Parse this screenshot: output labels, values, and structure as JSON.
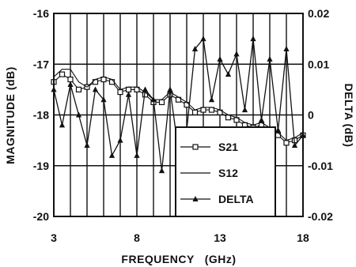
{
  "chart_data": {
    "type": "line",
    "xlabel": "FREQUENCY   (GHz)",
    "ylabel_left": "MAGNITUDE (dB)",
    "ylabel_right": "DELTA (dB)",
    "xlim": [
      3,
      18
    ],
    "ylim_left": [
      -20,
      -16
    ],
    "ylim_right": [
      -0.02,
      0.02
    ],
    "x_ticks": [
      "3",
      "8",
      "13",
      "18"
    ],
    "y_ticks_left": [
      "-16",
      "-17",
      "-18",
      "-19",
      "-20"
    ],
    "y_ticks_right": [
      "0.02",
      "0.01",
      "0",
      "-0.01",
      "-0.02"
    ],
    "grid": true,
    "legend_position": "lower-right",
    "series": [
      {
        "name": "S21",
        "axis": "left",
        "marker": "square",
        "x": [
          3.0,
          3.5,
          4.0,
          4.5,
          5.0,
          5.5,
          6.0,
          6.5,
          7.0,
          7.5,
          8.0,
          8.5,
          9.0,
          9.5,
          10.0,
          10.5,
          11.0,
          11.5,
          12.0,
          12.5,
          13.0,
          13.5,
          14.0,
          14.5,
          15.0,
          15.5,
          16.0,
          16.5,
          17.0,
          17.5,
          18.0
        ],
        "values": [
          -17.35,
          -17.2,
          -17.3,
          -17.5,
          -17.45,
          -17.35,
          -17.3,
          -17.35,
          -17.55,
          -17.5,
          -17.5,
          -17.6,
          -17.75,
          -17.75,
          -17.6,
          -17.7,
          -17.8,
          -17.95,
          -17.9,
          -17.9,
          -17.95,
          -18.05,
          -18.1,
          -18.2,
          -18.25,
          -18.2,
          -18.3,
          -18.4,
          -18.55,
          -18.5,
          -18.4
        ]
      },
      {
        "name": "S12",
        "axis": "left",
        "marker": "none",
        "x": [
          3.0,
          3.5,
          4.0,
          4.5,
          5.0,
          5.5,
          6.0,
          6.5,
          7.0,
          7.5,
          8.0,
          8.5,
          9.0,
          9.5,
          10.0,
          10.5,
          11.0,
          11.5,
          12.0,
          12.5,
          13.0,
          13.5,
          14.0,
          14.5,
          15.0,
          15.5,
          16.0,
          16.5,
          17.0,
          17.5,
          18.0
        ],
        "values": [
          -17.25,
          -17.1,
          -17.1,
          -17.35,
          -17.45,
          -17.3,
          -17.25,
          -17.3,
          -17.5,
          -17.45,
          -17.45,
          -17.55,
          -17.7,
          -17.7,
          -17.55,
          -17.65,
          -17.75,
          -17.9,
          -17.85,
          -17.85,
          -17.9,
          -18.0,
          -18.05,
          -18.15,
          -18.2,
          -18.15,
          -18.25,
          -18.35,
          -18.5,
          -18.45,
          -18.35
        ]
      },
      {
        "name": "DELTA",
        "axis": "right",
        "marker": "triangle",
        "x": [
          3.0,
          3.5,
          4.0,
          4.5,
          5.0,
          5.5,
          6.0,
          6.5,
          7.0,
          7.5,
          8.0,
          8.5,
          9.0,
          9.5,
          10.0,
          10.5,
          11.0,
          11.5,
          12.0,
          12.5,
          13.0,
          13.5,
          14.0,
          14.5,
          15.0,
          15.5,
          16.0,
          16.5,
          17.0,
          17.5,
          18.0
        ],
        "values": [
          0.005,
          -0.002,
          0.006,
          0.0,
          -0.006,
          0.005,
          0.003,
          -0.008,
          -0.005,
          0.004,
          -0.008,
          0.005,
          0.003,
          -0.011,
          0.005,
          -0.007,
          -0.003,
          0.013,
          0.015,
          0.003,
          0.011,
          0.008,
          0.012,
          0.001,
          0.015,
          -0.001,
          0.011,
          -0.003,
          0.013,
          -0.006,
          -0.004
        ]
      }
    ]
  }
}
